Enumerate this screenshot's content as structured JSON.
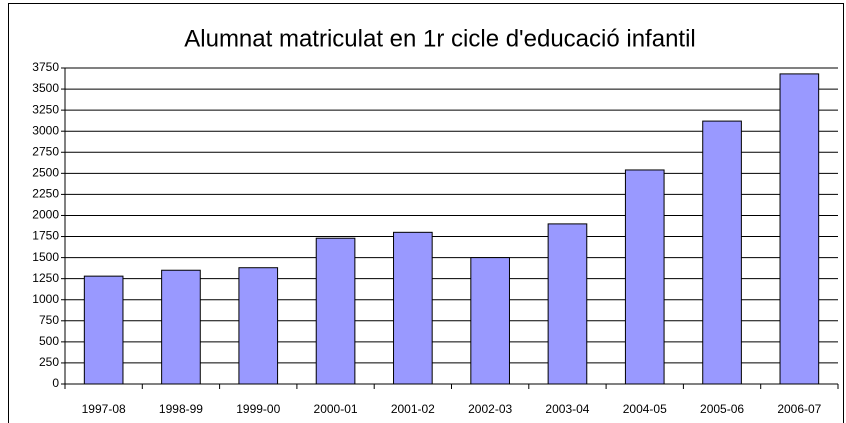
{
  "chart_data": {
    "type": "bar",
    "title": "Alumnat matriculat en 1r cicle d'educació infantil",
    "categories": [
      "1997-08",
      "1998-99",
      "1999-00",
      "2000-01",
      "2001-02",
      "2002-03",
      "2003-04",
      "2004-05",
      "2005-06",
      "2006-07"
    ],
    "values": [
      1280,
      1350,
      1380,
      1730,
      1800,
      1500,
      1900,
      2540,
      3120,
      3680
    ],
    "color": "#9999ff",
    "ylim": [
      0,
      3750
    ],
    "yticks": [
      0,
      250,
      500,
      750,
      1000,
      1250,
      1500,
      1750,
      2000,
      2250,
      2500,
      2750,
      3000,
      3250,
      3500,
      3750
    ],
    "grid": true
  }
}
